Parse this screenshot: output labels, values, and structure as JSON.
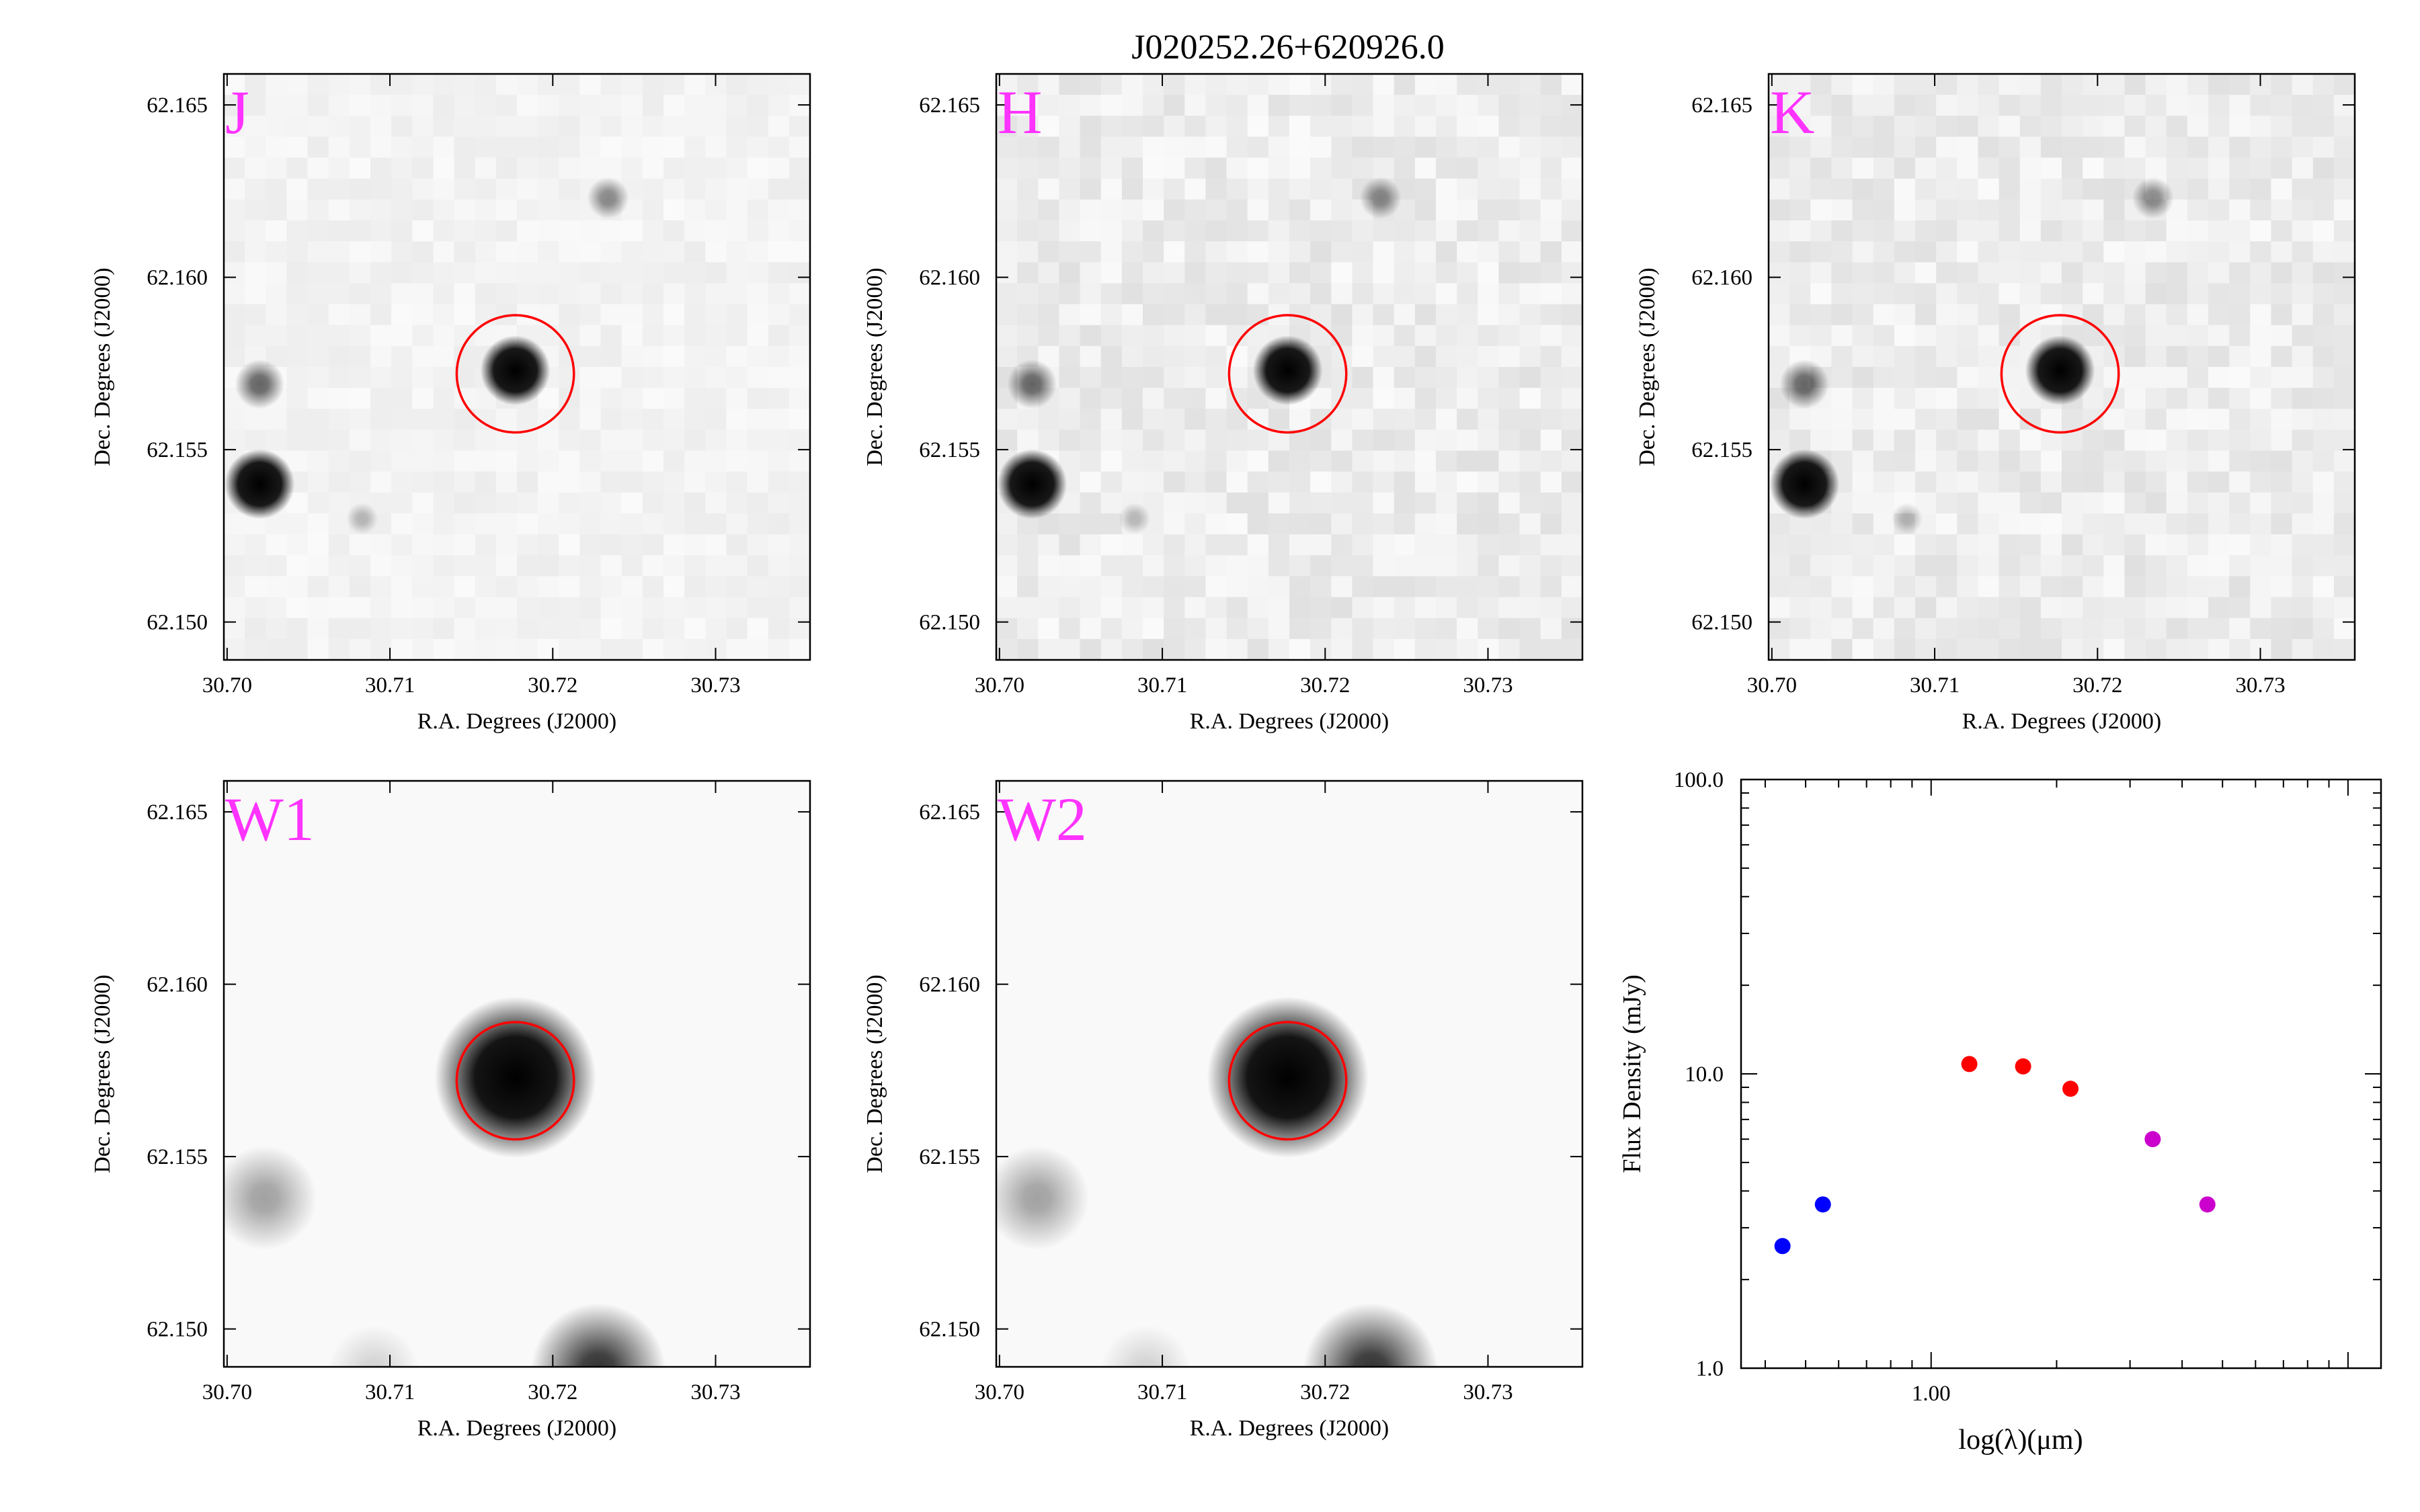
{
  "title": "J020252.26+620926.0",
  "colors": {
    "band_label": "#ff33ff",
    "aperture": "#ff0000",
    "sed_blue": "#0000ff",
    "sed_red": "#ff0000",
    "sed_magenta": "#cc00cc"
  },
  "image_panels": [
    {
      "band": "J",
      "kind": "2mass",
      "xlabel": "R.A. Degrees (J2000)",
      "ylabel": "Dec. Degrees (J2000)"
    },
    {
      "band": "H",
      "kind": "2mass",
      "xlabel": "R.A. Degrees (J2000)",
      "ylabel": "Dec. Degrees (J2000)"
    },
    {
      "band": "K",
      "kind": "2mass",
      "xlabel": "R.A. Degrees (J2000)",
      "ylabel": "Dec. Degrees (J2000)"
    },
    {
      "band": "W1",
      "kind": "wise",
      "xlabel": "R.A. Degrees (J2000)",
      "ylabel": "Dec. Degrees (J2000)"
    },
    {
      "band": "W2",
      "kind": "wise",
      "xlabel": "R.A. Degrees (J2000)",
      "ylabel": "Dec. Degrees (J2000)"
    }
  ],
  "ra_ticks": [
    "30.70",
    "30.71",
    "30.72",
    "30.73"
  ],
  "dec_ticks": [
    "62.150",
    "62.155",
    "62.160",
    "62.165"
  ],
  "chart_data": [
    {
      "type": "image",
      "panels": [
        "J",
        "H",
        "K",
        "W1",
        "W2"
      ],
      "xlabel": "R.A. Degrees (J2000)",
      "ylabel": "Dec. Degrees (J2000)",
      "xlim": [
        30.6998,
        30.7358
      ],
      "ylim": [
        62.1489,
        62.1659
      ],
      "target": {
        "ra": 30.7177,
        "dec": 62.1572,
        "aperture_radius_deg": 0.0017
      },
      "sources_2mass": [
        {
          "ra": 30.7177,
          "dec": 62.1573,
          "strength": 1.0
        },
        {
          "ra": 30.702,
          "dec": 62.154,
          "strength": 1.0
        },
        {
          "ra": 30.702,
          "dec": 62.1569,
          "strength": 0.6
        },
        {
          "ra": 30.7234,
          "dec": 62.1623,
          "strength": 0.45
        },
        {
          "ra": 30.7083,
          "dec": 62.153,
          "strength": 0.25
        }
      ],
      "sources_wise": [
        {
          "ra": 30.7177,
          "dec": 62.1573,
          "strength": 1.0
        },
        {
          "ra": 30.7023,
          "dec": 62.1538,
          "strength": 0.35
        },
        {
          "ra": 30.7228,
          "dec": 62.1488,
          "strength": 0.8
        },
        {
          "ra": 30.709,
          "dec": 62.1488,
          "strength": 0.15
        }
      ]
    },
    {
      "type": "scatter",
      "xlabel": "log(λ)(μm)",
      "ylabel": "Flux Density (mJy)",
      "x_scale": "log",
      "y_scale": "log",
      "xlim": [
        0.35,
        12.0
      ],
      "ylim": [
        1.0,
        100.0
      ],
      "y_tick_labels": [
        "1.0",
        "10.0",
        "100.0"
      ],
      "x_tick_labels": [
        "1.00"
      ],
      "series": [
        {
          "color": "#0000ff",
          "x": [
            0.44,
            0.55
          ],
          "y": [
            2.6,
            3.6
          ]
        },
        {
          "color": "#ff0000",
          "x": [
            1.235,
            1.662,
            2.159
          ],
          "y": [
            10.8,
            10.6,
            8.9
          ]
        },
        {
          "color": "#cc00cc",
          "x": [
            3.4,
            4.6
          ],
          "y": [
            6.0,
            3.6
          ]
        }
      ]
    }
  ]
}
